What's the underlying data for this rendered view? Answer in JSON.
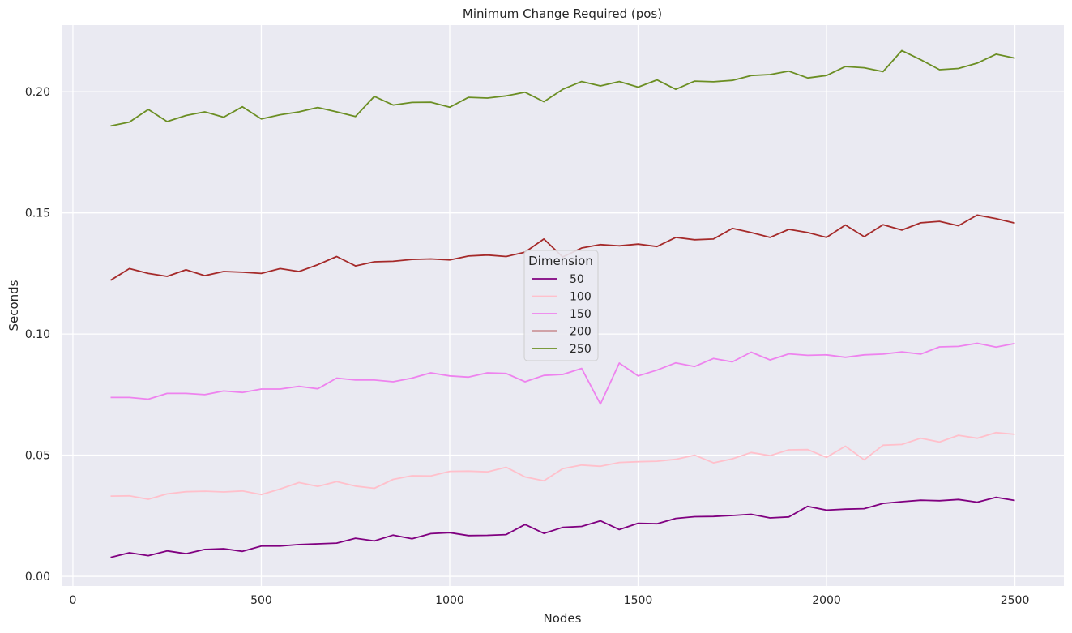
{
  "chart_data": {
    "type": "line",
    "title": "Minimum Change Required (pos)",
    "xlabel": "Nodes",
    "ylabel": "Seconds",
    "xlim": [
      -30,
      2630
    ],
    "ylim": [
      -0.004,
      0.2275
    ],
    "x_ticks": [
      0,
      500,
      1000,
      1500,
      2000,
      2500
    ],
    "y_ticks": [
      0.0,
      0.05,
      0.1,
      0.15,
      0.2
    ],
    "x_tick_labels": [
      "0",
      "500",
      "1000",
      "1500",
      "2000",
      "2500"
    ],
    "y_tick_labels": [
      "0.00",
      "0.05",
      "0.10",
      "0.15",
      "0.20"
    ],
    "grid": true,
    "background": "#eaeaf2",
    "legend": {
      "title": "Dimension",
      "placement": "center"
    },
    "x": [
      100,
      150,
      200,
      250,
      300,
      350,
      400,
      450,
      500,
      550,
      600,
      650,
      700,
      750,
      800,
      850,
      900,
      950,
      1000,
      1050,
      1100,
      1150,
      1200,
      1250,
      1300,
      1350,
      1400,
      1450,
      1500,
      1550,
      1600,
      1650,
      1700,
      1750,
      1800,
      1850,
      1900,
      1950,
      2000,
      2050,
      2100,
      2150,
      2200,
      2250,
      2300,
      2350,
      2400,
      2450,
      2500
    ],
    "series": [
      {
        "name": "50",
        "color": "#800080",
        "values": [
          0.0078,
          0.0097,
          0.0085,
          0.0105,
          0.0093,
          0.0111,
          0.0114,
          0.0103,
          0.0125,
          0.0125,
          0.0131,
          0.0134,
          0.0137,
          0.0157,
          0.0146,
          0.017,
          0.0155,
          0.0176,
          0.018,
          0.0168,
          0.0169,
          0.0172,
          0.0214,
          0.0177,
          0.0202,
          0.0206,
          0.0229,
          0.0193,
          0.0219,
          0.0217,
          0.0239,
          0.0246,
          0.0247,
          0.0251,
          0.0256,
          0.0241,
          0.0245,
          0.0289,
          0.0273,
          0.0277,
          0.0279,
          0.0301,
          0.0308,
          0.0314,
          0.0312,
          0.0317,
          0.0306,
          0.0326,
          0.0313
        ]
      },
      {
        "name": "100",
        "color": "#ffc0cb",
        "values": [
          0.0331,
          0.0332,
          0.0318,
          0.034,
          0.0349,
          0.0351,
          0.0348,
          0.0352,
          0.0337,
          0.036,
          0.0387,
          0.0371,
          0.0391,
          0.0372,
          0.0363,
          0.04,
          0.0415,
          0.0414,
          0.0433,
          0.0434,
          0.0431,
          0.045,
          0.041,
          0.0394,
          0.0444,
          0.0459,
          0.0454,
          0.047,
          0.0473,
          0.0475,
          0.0483,
          0.05,
          0.0468,
          0.0485,
          0.0511,
          0.0498,
          0.0522,
          0.0523,
          0.0491,
          0.0537,
          0.0481,
          0.0541,
          0.0544,
          0.057,
          0.0554,
          0.0582,
          0.057,
          0.0593,
          0.0586
        ]
      },
      {
        "name": "150",
        "color": "#ee82ee",
        "values": [
          0.0738,
          0.0738,
          0.0731,
          0.0755,
          0.0755,
          0.075,
          0.0765,
          0.0759,
          0.0773,
          0.0773,
          0.0784,
          0.0774,
          0.0818,
          0.081,
          0.081,
          0.0803,
          0.0818,
          0.084,
          0.0827,
          0.0822,
          0.084,
          0.0837,
          0.0803,
          0.0829,
          0.0833,
          0.0858,
          0.0711,
          0.088,
          0.0827,
          0.0851,
          0.0881,
          0.0866,
          0.0899,
          0.0885,
          0.0925,
          0.0893,
          0.0918,
          0.0912,
          0.0914,
          0.0904,
          0.0914,
          0.0917,
          0.0926,
          0.0917,
          0.0947,
          0.0949,
          0.0962,
          0.0946,
          0.0961
        ]
      },
      {
        "name": "200",
        "color": "#a52a2a",
        "values": [
          0.1222,
          0.127,
          0.125,
          0.1238,
          0.1265,
          0.1241,
          0.1258,
          0.1255,
          0.125,
          0.127,
          0.1258,
          0.1286,
          0.132,
          0.1281,
          0.1298,
          0.13,
          0.1308,
          0.131,
          0.1306,
          0.1322,
          0.1326,
          0.132,
          0.1338,
          0.1392,
          0.1318,
          0.1355,
          0.1369,
          0.1364,
          0.1371,
          0.1361,
          0.1399,
          0.1389,
          0.1392,
          0.1436,
          0.1419,
          0.1399,
          0.1432,
          0.1419,
          0.1399,
          0.145,
          0.1402,
          0.1451,
          0.1429,
          0.1459,
          0.1465,
          0.1447,
          0.1491,
          0.1476,
          0.1458
        ]
      },
      {
        "name": "250",
        "color": "#6b8e23",
        "values": [
          0.1859,
          0.1875,
          0.1927,
          0.1877,
          0.1902,
          0.1917,
          0.1895,
          0.1938,
          0.1888,
          0.1905,
          0.1917,
          0.1935,
          0.1917,
          0.1898,
          0.1981,
          0.1945,
          0.1956,
          0.1957,
          0.1936,
          0.1977,
          0.1974,
          0.1983,
          0.1998,
          0.1959,
          0.201,
          0.2042,
          0.2024,
          0.2042,
          0.2019,
          0.2049,
          0.201,
          0.2044,
          0.2041,
          0.2047,
          0.2067,
          0.2071,
          0.2085,
          0.2057,
          0.2067,
          0.2104,
          0.2099,
          0.2083,
          0.217,
          0.2132,
          0.2091,
          0.2096,
          0.2118,
          0.2155,
          0.2139
        ]
      }
    ]
  }
}
